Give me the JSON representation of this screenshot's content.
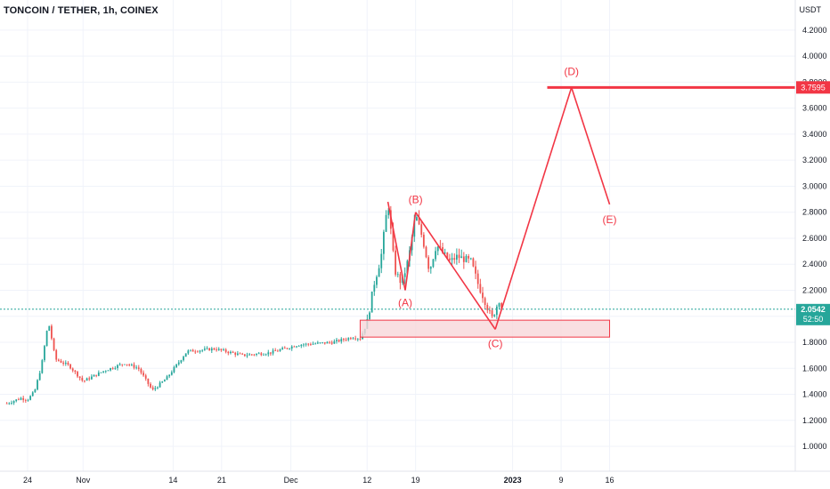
{
  "header": {
    "title": "TONCOIN / TETHER, 1h, COINEX",
    "unit": "USDT"
  },
  "colors": {
    "up": "#26a69a",
    "down": "#ef5350",
    "drawing": "#f23645",
    "zone_fill": "#f8d7da",
    "zone_stroke": "#f23645",
    "last_price_bg": "#26a69a",
    "level_bg": "#f23645",
    "grid": "#f0f3fa",
    "axis_text": "#131722"
  },
  "price_labels": {
    "level": "3.7595",
    "last_price": "2.0542",
    "countdown": "52:50"
  },
  "chart_data": {
    "type": "candlestick",
    "title": "TONCOIN / TETHER, 1h, COINEX",
    "ylabel": "USDT",
    "ylim": [
      0.85,
      4.3
    ],
    "y_ticks": [
      "1.0000",
      "1.2000",
      "1.4000",
      "1.6000",
      "1.8000",
      "2.0000",
      "2.2000",
      "2.4000",
      "2.6000",
      "2.8000",
      "3.0000",
      "3.2000",
      "3.4000",
      "3.6000",
      "3.8000",
      "4.0000",
      "4.2000"
    ],
    "x_ticks": [
      "24",
      "Nov",
      "14",
      "21",
      "Dec",
      "12",
      "19",
      "2023",
      "9",
      "16"
    ],
    "x_tick_days": [
      -7,
      1,
      14,
      21,
      31,
      42,
      49,
      63,
      70,
      77
    ],
    "x_range_days": [
      -10,
      89
    ],
    "price_path": [
      {
        "day": -10,
        "price": 1.33
      },
      {
        "day": -8,
        "price": 1.37
      },
      {
        "day": -7,
        "price": 1.36
      },
      {
        "day": -6,
        "price": 1.42
      },
      {
        "day": -5,
        "price": 1.62
      },
      {
        "day": -4,
        "price": 1.96
      },
      {
        "day": -3.5,
        "price": 1.82
      },
      {
        "day": -3,
        "price": 1.67
      },
      {
        "day": -1,
        "price": 1.62
      },
      {
        "day": 1,
        "price": 1.5
      },
      {
        "day": 4,
        "price": 1.58
      },
      {
        "day": 7,
        "price": 1.64
      },
      {
        "day": 9,
        "price": 1.6
      },
      {
        "day": 11,
        "price": 1.43
      },
      {
        "day": 13,
        "price": 1.52
      },
      {
        "day": 16,
        "price": 1.73
      },
      {
        "day": 20,
        "price": 1.75
      },
      {
        "day": 24,
        "price": 1.7
      },
      {
        "day": 28,
        "price": 1.72
      },
      {
        "day": 32,
        "price": 1.78
      },
      {
        "day": 37,
        "price": 1.8
      },
      {
        "day": 40,
        "price": 1.84
      },
      {
        "day": 41,
        "price": 1.83
      },
      {
        "day": 42,
        "price": 1.95
      },
      {
        "day": 43,
        "price": 2.25
      },
      {
        "day": 44,
        "price": 2.45
      },
      {
        "day": 45,
        "price": 2.88
      },
      {
        "day": 46,
        "price": 2.35
      },
      {
        "day": 47,
        "price": 2.25
      },
      {
        "day": 48,
        "price": 2.45
      },
      {
        "day": 49,
        "price": 2.78
      },
      {
        "day": 50,
        "price": 2.6
      },
      {
        "day": 51,
        "price": 2.35
      },
      {
        "day": 52,
        "price": 2.55
      },
      {
        "day": 53,
        "price": 2.48
      },
      {
        "day": 54,
        "price": 2.42
      },
      {
        "day": 55,
        "price": 2.46
      },
      {
        "day": 56,
        "price": 2.44
      },
      {
        "day": 57,
        "price": 2.42
      },
      {
        "day": 58,
        "price": 2.25
      },
      {
        "day": 59,
        "price": 2.12
      },
      {
        "day": 60,
        "price": 1.98
      },
      {
        "day": 61,
        "price": 2.12
      },
      {
        "day": 61.5,
        "price": 2.05
      }
    ],
    "wave_points": [
      {
        "label": "",
        "day": 45,
        "price": 2.88
      },
      {
        "label": "(A)",
        "day": 47.5,
        "price": 2.2
      },
      {
        "label": "(B)",
        "day": 49,
        "price": 2.8
      },
      {
        "label": "(C)",
        "day": 60.5,
        "price": 1.9
      },
      {
        "label": "(D)",
        "day": 71.5,
        "price": 3.7595
      },
      {
        "label": "(E)",
        "day": 77,
        "price": 2.86
      }
    ],
    "horizontal_level": {
      "price": 3.7595,
      "from_day": 68
    },
    "demand_zone": {
      "from_day": 41,
      "to_day": 77,
      "price_low": 1.84,
      "price_high": 1.97
    },
    "last_price": 2.0542
  }
}
